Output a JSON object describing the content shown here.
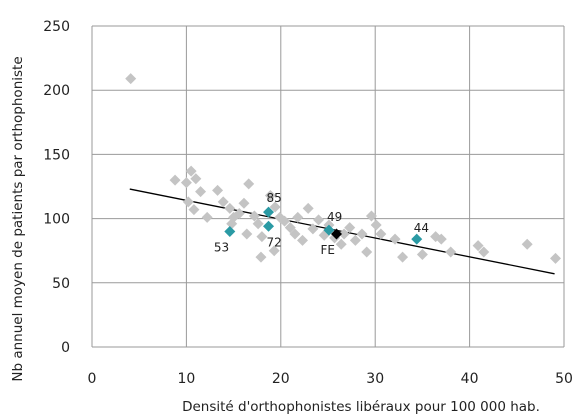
{
  "chart_data": {
    "type": "scatter",
    "xlabel": "Densité d'orthophonistes libéraux pour 100 000 hab.",
    "ylabel": "Nb annuel moyen de patients par orthophoniste",
    "xlim": [
      0,
      50
    ],
    "ylim": [
      0,
      250
    ],
    "x_ticks": [
      "0",
      "10",
      "20",
      "30",
      "40",
      "50"
    ],
    "y_ticks": [
      "0",
      "50",
      "100",
      "150",
      "200",
      "250"
    ],
    "grid": true,
    "colors": {
      "other": "#c4c4c4",
      "highlight": "#2a9aa4",
      "fe": "#000000",
      "trend": "#000000",
      "grid": "#9a9a9a"
    },
    "trendline": {
      "x": [
        4,
        49
      ],
      "y": [
        123,
        57
      ]
    },
    "points": [
      {
        "x": 4.1,
        "y": 209
      },
      {
        "x": 8.8,
        "y": 130
      },
      {
        "x": 10.0,
        "y": 128
      },
      {
        "x": 10.5,
        "y": 137
      },
      {
        "x": 10.2,
        "y": 113
      },
      {
        "x": 11.0,
        "y": 131
      },
      {
        "x": 10.8,
        "y": 107
      },
      {
        "x": 11.5,
        "y": 121
      },
      {
        "x": 12.2,
        "y": 101
      },
      {
        "x": 13.3,
        "y": 122
      },
      {
        "x": 13.9,
        "y": 113
      },
      {
        "x": 14.6,
        "y": 108
      },
      {
        "x": 15.0,
        "y": 101
      },
      {
        "x": 14.8,
        "y": 96
      },
      {
        "x": 15.6,
        "y": 104
      },
      {
        "x": 16.1,
        "y": 112
      },
      {
        "x": 16.6,
        "y": 127
      },
      {
        "x": 17.2,
        "y": 102
      },
      {
        "x": 16.4,
        "y": 88
      },
      {
        "x": 17.6,
        "y": 96
      },
      {
        "x": 18.0,
        "y": 86
      },
      {
        "x": 18.9,
        "y": 118
      },
      {
        "x": 19.4,
        "y": 109
      },
      {
        "x": 19.9,
        "y": 101
      },
      {
        "x": 19.3,
        "y": 75
      },
      {
        "x": 17.9,
        "y": 70
      },
      {
        "x": 20.4,
        "y": 98
      },
      {
        "x": 21.0,
        "y": 93
      },
      {
        "x": 21.8,
        "y": 101
      },
      {
        "x": 22.3,
        "y": 83
      },
      {
        "x": 22.9,
        "y": 108
      },
      {
        "x": 23.4,
        "y": 92
      },
      {
        "x": 24.0,
        "y": 99
      },
      {
        "x": 24.6,
        "y": 87
      },
      {
        "x": 25.1,
        "y": 95
      },
      {
        "x": 26.4,
        "y": 80
      },
      {
        "x": 27.3,
        "y": 93
      },
      {
        "x": 27.9,
        "y": 83
      },
      {
        "x": 28.6,
        "y": 88
      },
      {
        "x": 29.1,
        "y": 74
      },
      {
        "x": 29.6,
        "y": 102
      },
      {
        "x": 30.1,
        "y": 95
      },
      {
        "x": 30.6,
        "y": 88
      },
      {
        "x": 32.1,
        "y": 84
      },
      {
        "x": 32.9,
        "y": 70
      },
      {
        "x": 35.0,
        "y": 72
      },
      {
        "x": 36.4,
        "y": 86
      },
      {
        "x": 37.0,
        "y": 84
      },
      {
        "x": 38.0,
        "y": 74
      },
      {
        "x": 40.9,
        "y": 79
      },
      {
        "x": 41.5,
        "y": 74
      },
      {
        "x": 46.1,
        "y": 80
      },
      {
        "x": 49.1,
        "y": 69
      },
      {
        "x": 26.7,
        "y": 88
      },
      {
        "x": 25.7,
        "y": 85
      },
      {
        "x": 21.5,
        "y": 88
      }
    ],
    "highlighted": [
      {
        "label": "85",
        "x": 18.7,
        "y": 105,
        "dx": -10,
        "dy": -1
      },
      {
        "label": "72",
        "x": 18.7,
        "y": 94,
        "dx": -10,
        "dy": 2
      },
      {
        "label": "53",
        "x": 14.6,
        "y": 90,
        "dx": -14,
        "dy": 2
      },
      {
        "label": "49",
        "x": 25.1,
        "y": 91,
        "dx": -18,
        "dy": -1
      },
      {
        "label": "44",
        "x": 34.4,
        "y": 84,
        "dx": -9,
        "dy": -1
      }
    ],
    "fe_point": {
      "label": "FE",
      "x": 25.9,
      "y": 88
    }
  }
}
